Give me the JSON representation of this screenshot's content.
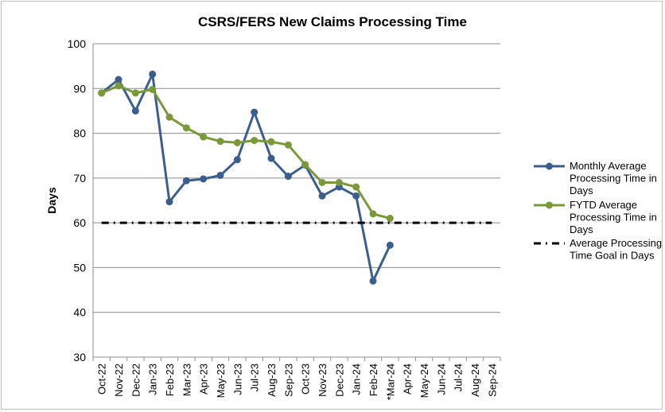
{
  "chart_data": {
    "type": "line",
    "title": "CSRS/FERS New Claims Processing Time",
    "xlabel": "",
    "ylabel": "Days",
    "ylim": [
      30,
      100
    ],
    "yticks": [
      30,
      40,
      50,
      60,
      70,
      80,
      90,
      100
    ],
    "grid": true,
    "legend_position": "right",
    "categories": [
      "Oct-22",
      "Nov-22",
      "Dec-22",
      "Jan-23",
      "Feb-23",
      "Mar-23",
      "Apr-23",
      "May-23",
      "Jun-23",
      "Jul-23",
      "Aug-23",
      "Sep-23",
      "Oct-23",
      "Nov-23",
      "Dec-23",
      "Jan-24",
      "Feb-24",
      "*Mar-24",
      "Apr-24",
      "May-24",
      "Jun-24",
      "Jul-24",
      "Aug-24",
      "Sep-24"
    ],
    "series": [
      {
        "name": "Monthly Average Processing Time in Days",
        "legend_lines": [
          "Monthly Average",
          "Processing Time in",
          "Days"
        ],
        "color": "#3a5f8f",
        "style": "solid-markers",
        "values": [
          89,
          92,
          85,
          93.2,
          64.7,
          69.4,
          69.8,
          70.6,
          74.1,
          84.7,
          74.4,
          70.4,
          72.9,
          66,
          68,
          66,
          47,
          55,
          null,
          null,
          null,
          null,
          null,
          null
        ]
      },
      {
        "name": "FYTD Average Processing Time in Days",
        "legend_lines": [
          "FYTD Average",
          "Processing Time in",
          "Days"
        ],
        "color": "#7a9a3a",
        "style": "solid-markers",
        "values": [
          89,
          90.6,
          89,
          89.8,
          83.6,
          81.2,
          79.2,
          78.2,
          77.9,
          78.4,
          78.1,
          77.4,
          73,
          69,
          69,
          68,
          62,
          61,
          null,
          null,
          null,
          null,
          null,
          null
        ]
      },
      {
        "name": "Average Processing Time Goal in Days",
        "legend_lines": [
          "Average Processing",
          "Time Goal in Days"
        ],
        "color": "#000000",
        "style": "dash-dot",
        "values": [
          60,
          60,
          60,
          60,
          60,
          60,
          60,
          60,
          60,
          60,
          60,
          60,
          60,
          60,
          60,
          60,
          60,
          60,
          60,
          60,
          60,
          60,
          60,
          60
        ]
      }
    ]
  }
}
